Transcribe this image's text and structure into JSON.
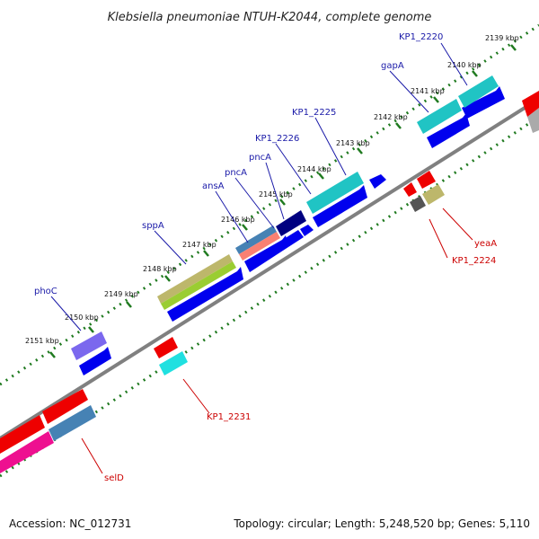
{
  "title": "Klebsiella pneumoniae NTUH-K2044, complete genome",
  "accession": "Accession: NC_012731",
  "summary": "Topology: circular; Length: 5,248,520 bp; Genes: 5,110",
  "colors": {
    "backbone": "#808080",
    "ruler": "#1f7a1f",
    "forward_label": "#1a1aa8",
    "reverse_label": "#cc0000",
    "cds": "#0000ee",
    "gene_cyan": "#20c4c4",
    "gene_red": "#ee0000",
    "gene_magenta": "#ee1090",
    "gene_steelblue": "#4682b4",
    "gene_navy": "#000080",
    "gene_khaki": "#bdb76b",
    "gene_lime": "#9acd32",
    "gene_violet": "#7b68ee",
    "gene_salmon": "#fa8072",
    "gene_darkgray": "#555555",
    "gene_lightgray": "#aaaaaa"
  },
  "ticks": [
    {
      "label": "2139 kbp"
    },
    {
      "label": "2140 kbp"
    },
    {
      "label": "2141 kbp"
    },
    {
      "label": "2142 kbp"
    },
    {
      "label": "2143 kbp"
    },
    {
      "label": "2144 kbp"
    },
    {
      "label": "2145 kbp"
    },
    {
      "label": "2146 kbp"
    },
    {
      "label": "2147 kbp"
    },
    {
      "label": "2148 kbp"
    },
    {
      "label": "2149 kbp"
    },
    {
      "label": "2150 kbp"
    },
    {
      "label": "2151 kbp"
    }
  ],
  "forward_genes": [
    {
      "label": "KP1_2220"
    },
    {
      "label": "gapA"
    },
    {
      "label": "KP1_2225"
    },
    {
      "label": "KP1_2226"
    },
    {
      "label": "pncA"
    },
    {
      "label": "pncA"
    },
    {
      "label": "ansA"
    },
    {
      "label": "sppA"
    },
    {
      "label": "phoC"
    }
  ],
  "reverse_genes": [
    {
      "label": "yeaA"
    },
    {
      "label": "KP1_2224"
    },
    {
      "label": "KP1_2231"
    },
    {
      "label": "selD"
    }
  ]
}
